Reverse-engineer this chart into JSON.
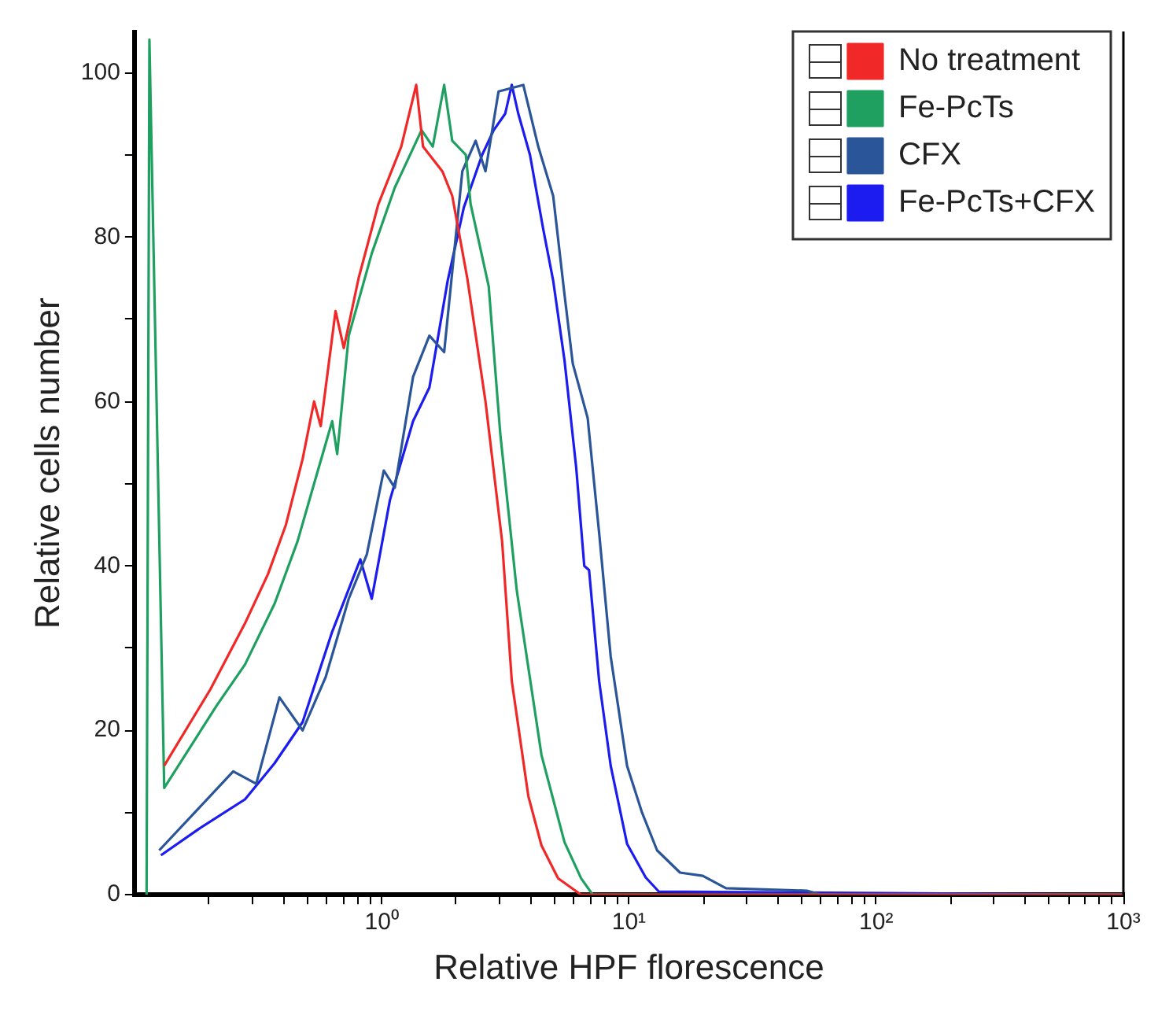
{
  "chart_data": {
    "type": "line",
    "xlabel": "Relative HPF florescence",
    "ylabel": "Relative cells number",
    "log": "x",
    "xlim": [
      0.1,
      1000
    ],
    "ylim": [
      0,
      105
    ],
    "xticks": [
      {
        "value": 0.2,
        "label": null
      },
      {
        "value": 0.3,
        "label": null
      },
      {
        "value": 0.4,
        "label": null
      },
      {
        "value": 0.5,
        "label": null
      },
      {
        "value": 0.6,
        "label": null
      },
      {
        "value": 0.7,
        "label": null
      },
      {
        "value": 0.8,
        "label": null
      },
      {
        "value": 0.9,
        "label": null
      },
      {
        "value": 1,
        "label": "10⁰"
      },
      {
        "value": 2,
        "label": null
      },
      {
        "value": 3,
        "label": null
      },
      {
        "value": 4,
        "label": null
      },
      {
        "value": 5,
        "label": null
      },
      {
        "value": 6,
        "label": null
      },
      {
        "value": 7,
        "label": null
      },
      {
        "value": 8,
        "label": null
      },
      {
        "value": 9,
        "label": null
      },
      {
        "value": 10,
        "label": "10¹"
      },
      {
        "value": 20,
        "label": null
      },
      {
        "value": 30,
        "label": null
      },
      {
        "value": 40,
        "label": null
      },
      {
        "value": 50,
        "label": null
      },
      {
        "value": 60,
        "label": null
      },
      {
        "value": 70,
        "label": null
      },
      {
        "value": 80,
        "label": null
      },
      {
        "value": 90,
        "label": null
      },
      {
        "value": 100,
        "label": "10²"
      },
      {
        "value": 200,
        "label": null
      },
      {
        "value": 300,
        "label": null
      },
      {
        "value": 400,
        "label": null
      },
      {
        "value": 500,
        "label": null
      },
      {
        "value": 600,
        "label": null
      },
      {
        "value": 700,
        "label": null
      },
      {
        "value": 800,
        "label": null
      },
      {
        "value": 900,
        "label": null
      },
      {
        "value": 1000,
        "label": "10³"
      }
    ],
    "yticks": [
      0,
      {
        "value": 10,
        "label": null
      },
      20,
      {
        "value": 30,
        "label": null
      },
      40,
      {
        "value": 50,
        "label": null
      },
      60,
      {
        "value": 70,
        "label": null
      },
      80,
      {
        "value": 90,
        "label": null
      },
      100
    ],
    "legend": "top right",
    "grid": false,
    "series": [
      {
        "name": "No treatment",
        "color": "#f02828",
        "x": [
          0.132,
          0.203,
          0.28,
          0.347,
          0.41,
          0.479,
          0.533,
          0.567,
          0.651,
          0.703,
          0.807,
          0.97,
          1.2,
          1.38,
          1.47,
          1.76,
          1.93,
          2.22,
          2.63,
          3.07,
          3.36,
          3.92,
          4.43,
          5.17,
          6.41,
          1000
        ],
        "values": [
          15.7,
          25,
          33,
          39,
          45,
          53,
          60,
          57,
          71,
          66.5,
          75,
          84,
          91,
          98.5,
          91,
          88,
          85,
          75,
          60,
          43,
          26,
          12,
          6,
          2,
          0,
          0
        ]
      },
      {
        "name": "Fe-PcTs",
        "color": "#1fa060",
        "x": [
          0.112,
          0.115,
          0.132,
          0.215,
          0.28,
          0.369,
          0.457,
          0.533,
          0.631,
          0.661,
          0.736,
          0.912,
          1.13,
          1.45,
          1.61,
          1.79,
          1.93,
          2.19,
          2.29,
          2.71,
          3.02,
          3.52,
          4.43,
          5.49,
          6.41,
          7.14,
          1000
        ],
        "values": [
          0,
          104,
          13,
          23,
          28,
          35.4,
          43,
          50,
          57.6,
          53.6,
          68,
          78,
          86,
          93,
          91,
          98.5,
          91.7,
          90,
          84,
          74,
          56,
          37,
          17,
          6.4,
          2,
          0,
          0
        ]
      },
      {
        "name": "CFX",
        "color": "#2a5598",
        "x": [
          0.126,
          0.251,
          0.311,
          0.386,
          0.479,
          0.594,
          0.736,
          0.871,
          1.02,
          1.13,
          1.34,
          1.56,
          1.79,
          2.12,
          2.4,
          2.63,
          2.97,
          3.74,
          4.3,
          4.94,
          5.49,
          5.93,
          6.81,
          7.58,
          8.44,
          9.83,
          11.3,
          13,
          16.1,
          19.9,
          24.7,
          52.5,
          60,
          1000
        ],
        "values": [
          5.4,
          15,
          13.5,
          24,
          20,
          26.5,
          36,
          41.4,
          51.6,
          49.5,
          63,
          68,
          66,
          88,
          91.7,
          88,
          97.7,
          98.5,
          91,
          85,
          73,
          64.6,
          58,
          44,
          29,
          15.7,
          10,
          5.4,
          2.7,
          2.3,
          0.8,
          0.5,
          0,
          0
        ]
      },
      {
        "name": "Fe-PcTs+CFX",
        "color": "#1c1cf0",
        "x": [
          0.128,
          0.182,
          0.28,
          0.369,
          0.479,
          0.631,
          0.82,
          0.912,
          1.08,
          1.34,
          1.56,
          1.85,
          2.15,
          2.55,
          2.84,
          3.16,
          3.36,
          3.57,
          3.98,
          4.5,
          4.94,
          5.49,
          6.12,
          6.6,
          6.9,
          7.58,
          8.44,
          9.83,
          11.7,
          13.2,
          1000
        ],
        "values": [
          4.8,
          8,
          11.6,
          16,
          21,
          32,
          40.8,
          36,
          48,
          57.6,
          61.7,
          74.7,
          83.6,
          90,
          93,
          95,
          98.5,
          95,
          90,
          81,
          74.7,
          65,
          52,
          40,
          39.5,
          26,
          15.7,
          6.2,
          2.1,
          0.4,
          0
        ]
      }
    ]
  }
}
